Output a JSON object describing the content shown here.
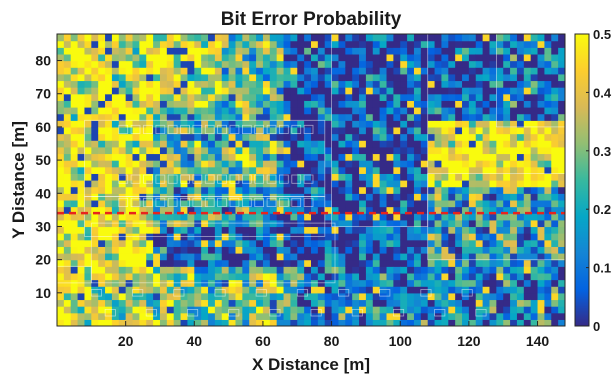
{
  "chart_data": {
    "type": "heatmap",
    "title": "Bit Error Probability",
    "xlabel": "X Distance [m]",
    "ylabel": "Y Distance [m]",
    "xlim": [
      0,
      148
    ],
    "ylim": [
      0,
      88
    ],
    "x_ticks": [
      20,
      40,
      60,
      80,
      100,
      120,
      140
    ],
    "y_ticks": [
      10,
      20,
      30,
      40,
      50,
      60,
      70,
      80
    ],
    "colorbar": {
      "range": [
        0,
        0.5
      ],
      "ticks": [
        0,
        0.1,
        0.2,
        0.3,
        0.4,
        0.5
      ],
      "tick_labels": [
        "0",
        "0.1",
        "0.2",
        "0.3",
        "0.4",
        "0.5"
      ],
      "colormap": "parula"
    },
    "reference_line": {
      "y": 34,
      "style": "dashed",
      "color": "#e8231d"
    },
    "grid": false,
    "regions": [
      {
        "x": [
          0,
          28
        ],
        "y": [
          0,
          88
        ],
        "value": 0.42
      },
      {
        "x": [
          28,
          48
        ],
        "y": [
          66,
          88
        ],
        "value": 0.4
      },
      {
        "x": [
          48,
          66
        ],
        "y": [
          66,
          88
        ],
        "value": 0.25
      },
      {
        "x": [
          28,
          66
        ],
        "y": [
          56,
          66
        ],
        "value": 0.22
      },
      {
        "x": [
          28,
          66
        ],
        "y": [
          42,
          56
        ],
        "value": 0.3
      },
      {
        "x": [
          28,
          80
        ],
        "y": [
          30,
          42
        ],
        "value": 0.2
      },
      {
        "x": [
          0,
          10
        ],
        "y": [
          14,
          26
        ],
        "value": 0.46
      },
      {
        "x": [
          10,
          34
        ],
        "y": [
          0,
          18
        ],
        "value": 0.38
      },
      {
        "x": [
          34,
          70
        ],
        "y": [
          0,
          18
        ],
        "value": 0.28
      },
      {
        "x": [
          70,
          148
        ],
        "y": [
          0,
          18
        ],
        "value": 0.12
      },
      {
        "x": [
          66,
          128
        ],
        "y": [
          18,
          88
        ],
        "value": 0.04
      },
      {
        "x": [
          128,
          148
        ],
        "y": [
          66,
          88
        ],
        "value": 0.1
      },
      {
        "x": [
          108,
          148
        ],
        "y": [
          42,
          62
        ],
        "value": 0.46
      },
      {
        "x": [
          108,
          148
        ],
        "y": [
          18,
          42
        ],
        "value": 0.22
      }
    ]
  }
}
